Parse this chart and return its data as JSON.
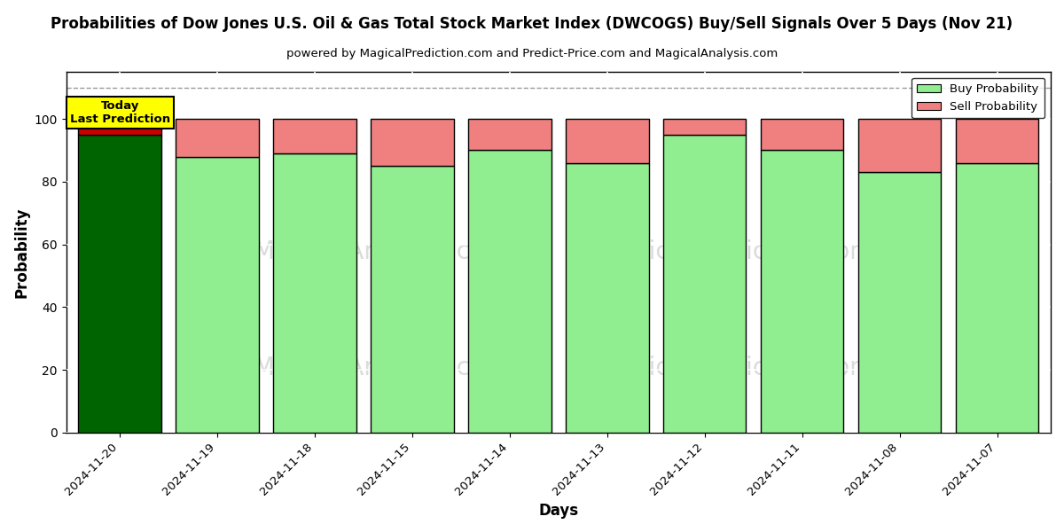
{
  "title": "Probabilities of Dow Jones U.S. Oil & Gas Total Stock Market Index (DWCOGS) Buy/Sell Signals Over 5 Days (Nov 21)",
  "subtitle": "powered by MagicalPrediction.com and Predict-Price.com and MagicalAnalysis.com",
  "xlabel": "Days",
  "ylabel": "Probability",
  "dates": [
    "2024-11-20",
    "2024-11-19",
    "2024-11-18",
    "2024-11-15",
    "2024-11-14",
    "2024-11-13",
    "2024-11-12",
    "2024-11-11",
    "2024-11-08",
    "2024-11-07"
  ],
  "buy_prob": [
    95,
    88,
    89,
    85,
    90,
    86,
    95,
    90,
    83,
    86
  ],
  "sell_prob": [
    5,
    12,
    11,
    15,
    10,
    14,
    5,
    10,
    17,
    14
  ],
  "buy_colors": [
    "#006400",
    "#90EE90",
    "#90EE90",
    "#90EE90",
    "#90EE90",
    "#90EE90",
    "#90EE90",
    "#90EE90",
    "#90EE90",
    "#90EE90"
  ],
  "sell_colors": [
    "#CC0000",
    "#F08080",
    "#F08080",
    "#F08080",
    "#F08080",
    "#F08080",
    "#F08080",
    "#F08080",
    "#F08080",
    "#F08080"
  ],
  "today_box_color": "#FFFF00",
  "today_label": "Today\nLast Prediction",
  "legend_buy_color": "#90EE90",
  "legend_sell_color": "#F08080",
  "ylim": [
    0,
    115
  ],
  "dashed_line_y": 110,
  "bar_width": 0.85,
  "edgecolor": "black",
  "background_color": "#ffffff",
  "grid_color": "white",
  "watermark_color": "#cccccc"
}
